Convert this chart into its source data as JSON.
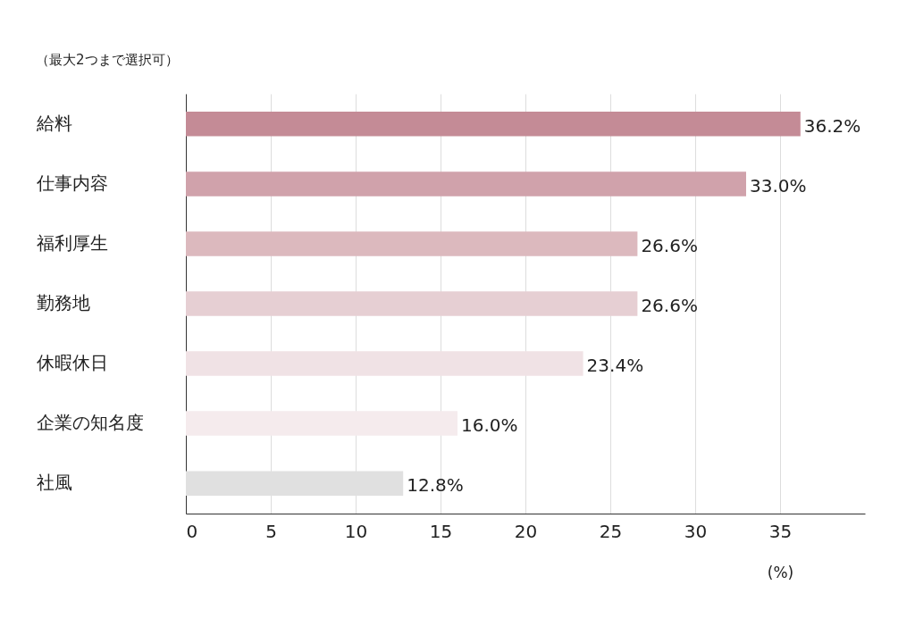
{
  "chart_data": {
    "type": "bar",
    "orientation": "horizontal",
    "subtitle": "（最大2つまで選択可）",
    "xlabel": "(%)",
    "categories": [
      "給料",
      "仕事内容",
      "福利厚生",
      "勤務地",
      "休暇休日",
      "企業の知名度",
      "社風"
    ],
    "values": [
      36.2,
      33.0,
      26.6,
      26.6,
      23.4,
      16.0,
      12.8
    ],
    "value_labels": [
      "36.2%",
      "33.0%",
      "26.6%",
      "26.6%",
      "23.4%",
      "16.0%",
      "12.8%"
    ],
    "colors": [
      "#c48b96",
      "#d0a2ab",
      "#dcb9be",
      "#e6cfd3",
      "#f0e2e5",
      "#f5ebed",
      "#e0e0e0"
    ],
    "xlim": [
      0,
      40
    ],
    "xticks": [
      0,
      5,
      10,
      15,
      20,
      25,
      30,
      35
    ],
    "grid": "x"
  }
}
